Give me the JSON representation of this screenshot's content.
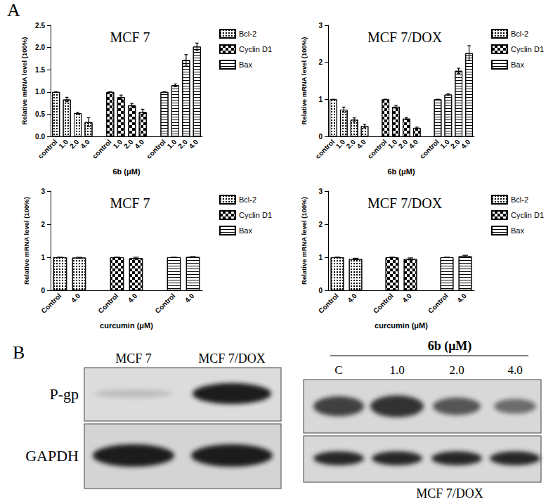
{
  "panels": {
    "a": "A",
    "b": "B"
  },
  "chart_data": [
    {
      "type": "bar",
      "title": "MCF 7",
      "x_label": "6b (μM)",
      "y_label": "Relative mRNA level (100%)",
      "categories": [
        "control",
        "1.0",
        "2.0",
        "4.0",
        null,
        "control",
        "1.0",
        "2.0",
        "4.0",
        null,
        "control",
        "1.0",
        "2.0",
        "4.0"
      ],
      "series": [
        {
          "name": "Bcl-2",
          "color": "#000000",
          "values": [
            1.0,
            0.83,
            0.52,
            0.32,
            null,
            null,
            null,
            null,
            null,
            null,
            null,
            null,
            null,
            null
          ],
          "errors": [
            0,
            0.05,
            0.02,
            0.1,
            null,
            null,
            null,
            null,
            null,
            null,
            null,
            null,
            null,
            null
          ]
        },
        {
          "name": "Cyclin D1",
          "color": "#000000",
          "values": [
            null,
            null,
            null,
            null,
            null,
            1.0,
            0.88,
            0.7,
            0.55,
            null,
            null,
            null,
            null,
            null
          ],
          "errors": [
            null,
            null,
            null,
            null,
            null,
            0,
            0.05,
            0.04,
            0.06,
            null,
            null,
            null,
            null,
            null
          ]
        },
        {
          "name": "Bax",
          "color": "#000000",
          "values": [
            null,
            null,
            null,
            null,
            null,
            null,
            null,
            null,
            null,
            null,
            1.0,
            1.15,
            1.72,
            2.02
          ],
          "errors": [
            null,
            null,
            null,
            null,
            null,
            null,
            null,
            null,
            null,
            null,
            0,
            0.03,
            0.12,
            0.08
          ]
        }
      ],
      "ylim": [
        0,
        2.5
      ],
      "yticks": [
        {
          "value": 0,
          "label": "0.0"
        },
        {
          "value": 0.5,
          "label": "0.5"
        },
        {
          "value": 1,
          "label": "1.0"
        },
        {
          "value": 1.5,
          "label": "1.5"
        },
        {
          "value": 2,
          "label": "2.0"
        },
        {
          "value": 2.5,
          "label": "2.5"
        }
      ],
      "legend": "right",
      "grid": false
    },
    {
      "type": "bar",
      "title": "MCF 7/DOX",
      "x_label": "6b (μM)",
      "y_label": "Relative mRNA level (100%)",
      "categories": [
        "control",
        "1.0",
        "2.0",
        "4.0",
        null,
        "control",
        "1.0",
        "2.0",
        "4.0",
        null,
        "control",
        "1.0",
        "2.0",
        "4.0"
      ],
      "series": [
        {
          "name": "Bcl-2",
          "color": "#000000",
          "values": [
            1.0,
            0.72,
            0.45,
            0.28,
            null,
            null,
            null,
            null,
            null,
            null,
            null,
            null,
            null,
            null
          ],
          "errors": [
            0,
            0.07,
            0.05,
            0.05,
            null,
            null,
            null,
            null,
            null,
            null,
            null,
            null,
            null,
            null
          ]
        },
        {
          "name": "Cyclin D1",
          "color": "#000000",
          "values": [
            null,
            null,
            null,
            null,
            null,
            1.0,
            0.8,
            0.48,
            0.23,
            null,
            null,
            null,
            null,
            null
          ],
          "errors": [
            null,
            null,
            null,
            null,
            null,
            0,
            0.04,
            0.03,
            0.02,
            null,
            null,
            null,
            null,
            null
          ]
        },
        {
          "name": "Bax",
          "color": "#000000",
          "values": [
            null,
            null,
            null,
            null,
            null,
            null,
            null,
            null,
            null,
            null,
            1.0,
            1.13,
            1.77,
            2.25
          ],
          "errors": [
            null,
            null,
            null,
            null,
            null,
            null,
            null,
            null,
            null,
            null,
            0,
            0.02,
            0.07,
            0.2
          ]
        }
      ],
      "ylim": [
        0,
        3
      ],
      "yticks": [
        0,
        1,
        2,
        3
      ],
      "legend": "right",
      "grid": false
    },
    {
      "type": "bar",
      "title": "MCF 7",
      "x_label": "curcumin (μM)",
      "y_label": "Relative mRNA level (100%)",
      "categories": [
        "Control",
        "4.0",
        null,
        "Control",
        "4.0",
        null,
        "Control",
        "4.0"
      ],
      "series": [
        {
          "name": "Bcl-2",
          "color": "#000000",
          "values": [
            1.0,
            0.99,
            null,
            null,
            null,
            null,
            null,
            null
          ],
          "errors": [
            0,
            0.01,
            null,
            null,
            null,
            null,
            null,
            null
          ]
        },
        {
          "name": "Cyclin D1",
          "color": "#000000",
          "values": [
            null,
            null,
            null,
            1.0,
            0.97,
            null,
            null,
            null
          ],
          "errors": [
            null,
            null,
            null,
            0,
            0.03,
            null,
            null,
            null
          ]
        },
        {
          "name": "Bax",
          "color": "#000000",
          "values": [
            null,
            null,
            null,
            null,
            null,
            null,
            1.0,
            1.01
          ],
          "errors": [
            null,
            null,
            null,
            null,
            null,
            null,
            0,
            0.01
          ]
        }
      ],
      "ylim": [
        0,
        3
      ],
      "yticks": [
        0,
        1,
        2,
        3
      ],
      "legend": "right",
      "grid": false
    },
    {
      "type": "bar",
      "title": "MCF 7/DOX",
      "x_label": "curcumin (μM)",
      "y_label": "Relative mRNA level (100%)",
      "categories": [
        "Control",
        "4.0",
        null,
        "Control",
        "4.0",
        null,
        "Control",
        "4.0"
      ],
      "series": [
        {
          "name": "Bcl-2",
          "color": "#000000",
          "values": [
            1.0,
            0.95,
            null,
            null,
            null,
            null,
            null,
            null
          ],
          "errors": [
            0,
            0.02,
            null,
            null,
            null,
            null,
            null,
            null
          ]
        },
        {
          "name": "Cyclin D1",
          "color": "#000000",
          "values": [
            null,
            null,
            null,
            1.0,
            0.95,
            null,
            null,
            null
          ],
          "errors": [
            null,
            null,
            null,
            0,
            0.03,
            null,
            null,
            null
          ]
        },
        {
          "name": "Bax",
          "color": "#000000",
          "values": [
            null,
            null,
            null,
            null,
            null,
            null,
            1.0,
            1.03
          ],
          "errors": [
            null,
            null,
            null,
            null,
            null,
            null,
            0,
            0.03
          ]
        }
      ],
      "ylim": [
        0,
        3
      ],
      "yticks": [
        0,
        1,
        2,
        3
      ],
      "legend": "right",
      "grid": false
    }
  ],
  "western_blot": {
    "left": {
      "columns": [
        "MCF 7",
        "MCF 7/DOX"
      ],
      "rows": [
        "P-gp",
        "GAPDH"
      ]
    },
    "right": {
      "header": "6b (μM)",
      "lanes": [
        "C",
        "1.0",
        "2.0",
        "4.0"
      ],
      "caption": "MCF 7/DOX"
    }
  }
}
